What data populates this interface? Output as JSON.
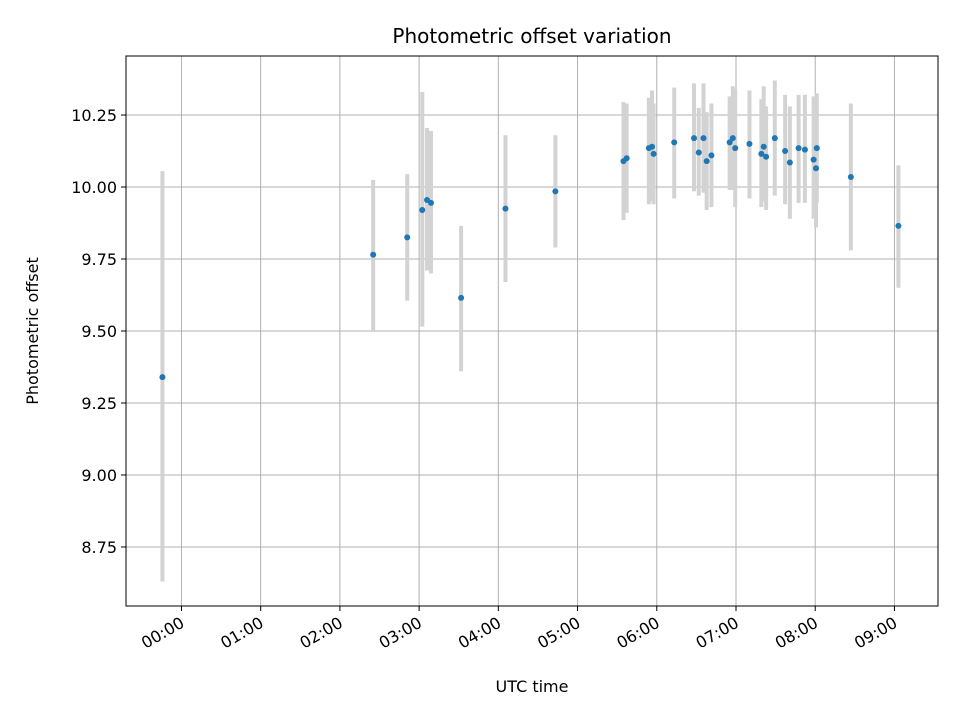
{
  "chart_data": {
    "type": "scatter",
    "title": "Photometric offset variation",
    "xlabel": "UTC time",
    "ylabel": "Photometric offset",
    "grid": true,
    "xlim_hours": [
      -0.7,
      9.55
    ],
    "ylim": [
      8.545,
      10.455
    ],
    "x_ticks": [
      {
        "value": 0,
        "label": "00:00"
      },
      {
        "value": 1,
        "label": "01:00"
      },
      {
        "value": 2,
        "label": "02:00"
      },
      {
        "value": 3,
        "label": "03:00"
      },
      {
        "value": 4,
        "label": "04:00"
      },
      {
        "value": 5,
        "label": "05:00"
      },
      {
        "value": 6,
        "label": "06:00"
      },
      {
        "value": 7,
        "label": "07:00"
      },
      {
        "value": 8,
        "label": "08:00"
      },
      {
        "value": 9,
        "label": "09:00"
      }
    ],
    "y_ticks": [
      {
        "value": 8.75,
        "label": "8.75"
      },
      {
        "value": 9.0,
        "label": "9.00"
      },
      {
        "value": 9.25,
        "label": "9.25"
      },
      {
        "value": 9.5,
        "label": "9.50"
      },
      {
        "value": 9.75,
        "label": "9.75"
      },
      {
        "value": 10.0,
        "label": "10.00"
      },
      {
        "value": 10.25,
        "label": "10.25"
      }
    ],
    "colors": {
      "point": "#1f77b4",
      "errorbar": "#d3d3d3",
      "grid": "#b0b0b0",
      "axes": "#000000"
    },
    "points": [
      {
        "x": -0.24,
        "y": 9.34,
        "ylo": 8.63,
        "yhi": 10.055
      },
      {
        "x": 2.42,
        "y": 9.765,
        "ylo": 9.5,
        "yhi": 10.025
      },
      {
        "x": 2.85,
        "y": 9.825,
        "ylo": 9.605,
        "yhi": 10.045
      },
      {
        "x": 3.04,
        "y": 9.92,
        "ylo": 9.515,
        "yhi": 10.33
      },
      {
        "x": 3.1,
        "y": 9.955,
        "ylo": 9.71,
        "yhi": 10.205
      },
      {
        "x": 3.15,
        "y": 9.945,
        "ylo": 9.7,
        "yhi": 10.195
      },
      {
        "x": 3.53,
        "y": 9.615,
        "ylo": 9.36,
        "yhi": 9.865
      },
      {
        "x": 4.09,
        "y": 9.925,
        "ylo": 9.67,
        "yhi": 10.18
      },
      {
        "x": 4.72,
        "y": 9.985,
        "ylo": 9.79,
        "yhi": 10.18
      },
      {
        "x": 5.58,
        "y": 10.09,
        "ylo": 9.885,
        "yhi": 10.295
      },
      {
        "x": 5.62,
        "y": 10.1,
        "ylo": 9.91,
        "yhi": 10.29
      },
      {
        "x": 5.9,
        "y": 10.135,
        "ylo": 9.94,
        "yhi": 10.31
      },
      {
        "x": 5.94,
        "y": 10.14,
        "ylo": 9.95,
        "yhi": 10.335
      },
      {
        "x": 5.96,
        "y": 10.115,
        "ylo": 9.94,
        "yhi": 10.29
      },
      {
        "x": 6.22,
        "y": 10.155,
        "ylo": 9.96,
        "yhi": 10.345
      },
      {
        "x": 6.47,
        "y": 10.17,
        "ylo": 9.985,
        "yhi": 10.36
      },
      {
        "x": 6.53,
        "y": 10.12,
        "ylo": 9.97,
        "yhi": 10.275
      },
      {
        "x": 6.59,
        "y": 10.17,
        "ylo": 9.98,
        "yhi": 10.36
      },
      {
        "x": 6.63,
        "y": 10.09,
        "ylo": 9.92,
        "yhi": 10.26
      },
      {
        "x": 6.69,
        "y": 10.11,
        "ylo": 9.93,
        "yhi": 10.29
      },
      {
        "x": 6.92,
        "y": 10.155,
        "ylo": 9.99,
        "yhi": 10.315
      },
      {
        "x": 6.96,
        "y": 10.17,
        "ylo": 9.99,
        "yhi": 10.35
      },
      {
        "x": 6.99,
        "y": 10.135,
        "ylo": 9.93,
        "yhi": 10.34
      },
      {
        "x": 7.17,
        "y": 10.15,
        "ylo": 9.96,
        "yhi": 10.335
      },
      {
        "x": 7.32,
        "y": 10.115,
        "ylo": 9.93,
        "yhi": 10.305
      },
      {
        "x": 7.35,
        "y": 10.14,
        "ylo": 9.95,
        "yhi": 10.35
      },
      {
        "x": 7.38,
        "y": 10.105,
        "ylo": 9.92,
        "yhi": 10.28
      },
      {
        "x": 7.49,
        "y": 10.17,
        "ylo": 9.97,
        "yhi": 10.37
      },
      {
        "x": 7.62,
        "y": 10.125,
        "ylo": 9.94,
        "yhi": 10.32
      },
      {
        "x": 7.68,
        "y": 10.085,
        "ylo": 9.89,
        "yhi": 10.28
      },
      {
        "x": 7.79,
        "y": 10.135,
        "ylo": 9.945,
        "yhi": 10.32
      },
      {
        "x": 7.87,
        "y": 10.13,
        "ylo": 9.945,
        "yhi": 10.32
      },
      {
        "x": 7.98,
        "y": 10.095,
        "ylo": 9.89,
        "yhi": 10.315
      },
      {
        "x": 8.01,
        "y": 10.065,
        "ylo": 9.86,
        "yhi": 10.265
      },
      {
        "x": 8.02,
        "y": 10.135,
        "ylo": 9.945,
        "yhi": 10.325
      },
      {
        "x": 8.45,
        "y": 10.035,
        "ylo": 9.78,
        "yhi": 10.29
      },
      {
        "x": 9.05,
        "y": 9.865,
        "ylo": 9.65,
        "yhi": 10.075
      }
    ]
  }
}
